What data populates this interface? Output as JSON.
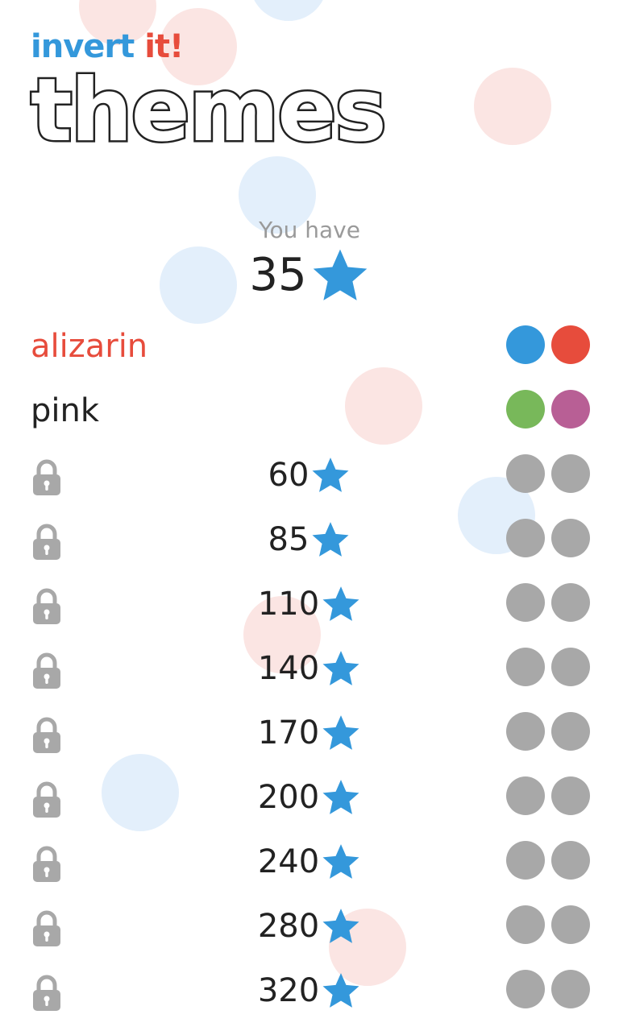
{
  "app": {
    "brand_part1": "invert",
    "brand_part2": "it!",
    "title": "themes"
  },
  "balance": {
    "label": "You have",
    "value": "35"
  },
  "colors": {
    "star": "#3498db",
    "lock": "#a8a8a8",
    "locked_swatch": "#a8a8a8",
    "bubble_red": "#fbe5e3",
    "bubble_blue": "#e3effb"
  },
  "themes": [
    {
      "name": "alizarin",
      "name_color": "#e74c3c",
      "swatches": [
        "#3498db",
        "#e74c3c"
      ]
    },
    {
      "name": "pink",
      "name_color": "#222222",
      "swatches": [
        "#78b85a",
        "#b85f95"
      ]
    }
  ],
  "locked_themes": [
    {
      "price": "60"
    },
    {
      "price": "85"
    },
    {
      "price": "110"
    },
    {
      "price": "140"
    },
    {
      "price": "170"
    },
    {
      "price": "200"
    },
    {
      "price": "240"
    },
    {
      "price": "280"
    },
    {
      "price": "320"
    }
  ]
}
